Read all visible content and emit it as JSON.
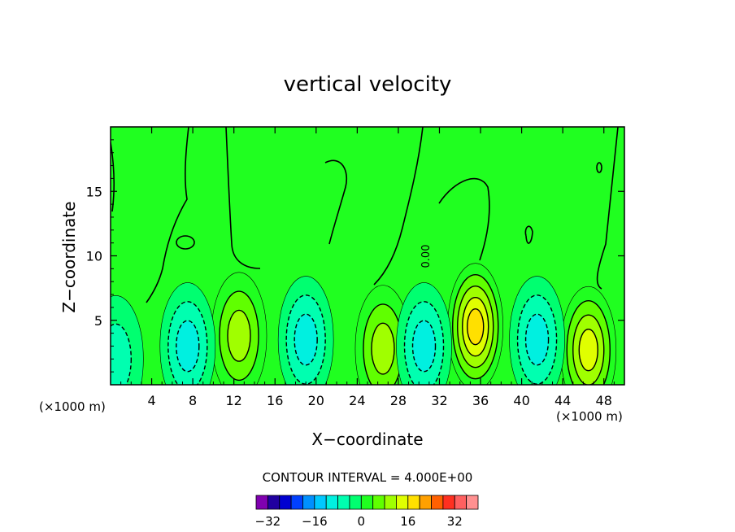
{
  "chart_data": {
    "type": "heatmap",
    "title": "vertical velocity",
    "xlabel": "X−coordinate",
    "ylabel": "Z−coordinate",
    "x_unit_label": "(×1000 m)",
    "x_unit_label_left": "(×1000 m)",
    "xlim": [
      0,
      50
    ],
    "ylim": [
      0,
      20
    ],
    "x_ticks": [
      4,
      8,
      12,
      16,
      20,
      24,
      28,
      32,
      36,
      40,
      44,
      48
    ],
    "y_ticks": [
      5,
      10,
      15
    ],
    "contour_interval_text": "CONTOUR INTERVAL = 4.000E+00",
    "zero_contour_label": "0.00",
    "colorbar": {
      "colors": [
        "#8000b0",
        "#2000a0",
        "#0000d0",
        "#0040ff",
        "#0090ff",
        "#00c8ff",
        "#00f0e0",
        "#00ffb0",
        "#00ff70",
        "#20ff20",
        "#60ff00",
        "#a0ff00",
        "#e0ff00",
        "#ffe000",
        "#ffa000",
        "#ff6000",
        "#ff3020",
        "#ff6060",
        "#ff9090"
      ],
      "tick_labels": [
        "−32",
        "−16",
        "0",
        "16",
        "32"
      ],
      "tick_values": [
        -32,
        -16,
        0,
        16,
        32
      ],
      "min": -36,
      "max": 40
    },
    "features": [
      {
        "x": 35.5,
        "z": 4.5,
        "value": 17,
        "kind": "updraft"
      },
      {
        "x": 46.5,
        "z": 2.7,
        "value": 13,
        "kind": "updraft"
      },
      {
        "x": 26.5,
        "z": 2.8,
        "value": 10,
        "kind": "updraft"
      },
      {
        "x": 12.5,
        "z": 3.8,
        "value": 9,
        "kind": "updraft"
      },
      {
        "x": 7.5,
        "z": 3.0,
        "value": -12,
        "kind": "downdraft"
      },
      {
        "x": 19.0,
        "z": 3.5,
        "value": -9,
        "kind": "downdraft"
      },
      {
        "x": 30.5,
        "z": 3.0,
        "value": -9,
        "kind": "downdraft"
      },
      {
        "x": 41.5,
        "z": 3.5,
        "value": -9,
        "kind": "downdraft"
      },
      {
        "x": 0.5,
        "z": 2.0,
        "value": -5,
        "kind": "downdraft"
      }
    ]
  }
}
